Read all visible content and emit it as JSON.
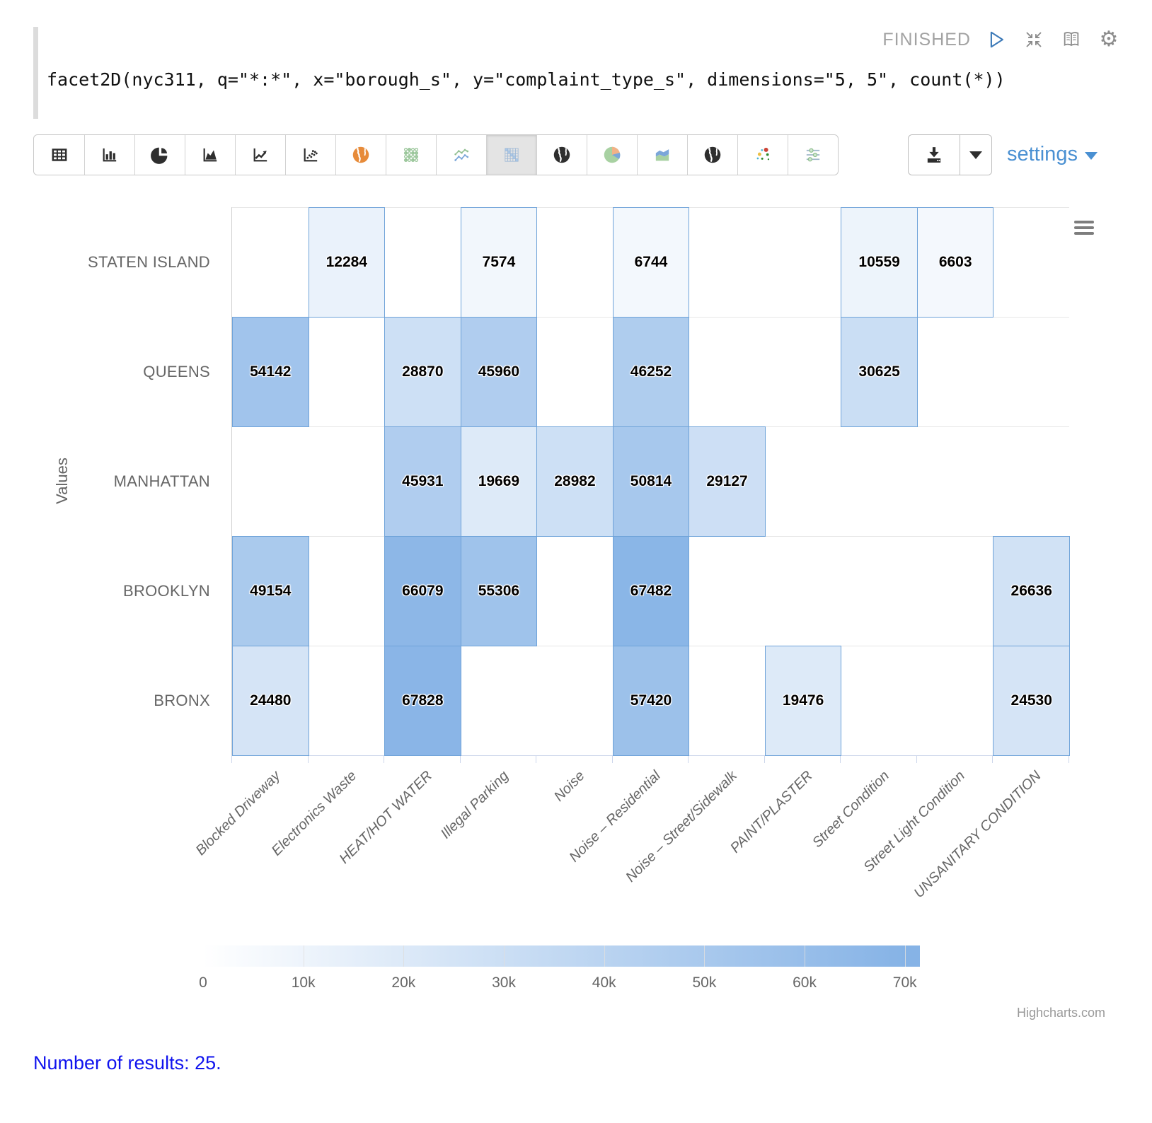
{
  "status": {
    "label": "FINISHED"
  },
  "editor": {
    "code": "facet2D(nyc311, q=\"*:*\", x=\"borough_s\", y=\"complaint_type_s\", dimensions=\"5, 5\", count(*))"
  },
  "toolbar": {
    "chart_type_icons": [
      "table-icon",
      "bar-chart-icon",
      "pie-chart-icon",
      "area-chart-icon",
      "line-chart-icon",
      "scatter-plot-icon",
      "map-globe-orange-icon",
      "dot-matrix-icon",
      "multi-line-chart-icon",
      "heatmap-icon",
      "globe-icon",
      "color-pie-icon",
      "stacked-area-icon",
      "globe2-icon",
      "bubble-chart-icon",
      "parallel-sliders-icon"
    ],
    "selected_icon": "heatmap-icon",
    "settings_label": "settings"
  },
  "colors": {
    "accent_blue": "#4a90d2",
    "link_blue": "#1013ee",
    "status_gray": "#a2a2a2",
    "cell_border": "#6fa3d9",
    "axis_line": "#ccd6eb",
    "gridline": "#e6e6e6"
  },
  "chart_data": {
    "type": "heatmap",
    "title": "",
    "ylabel": "Values",
    "xlabel": "",
    "x_categories": [
      "Blocked Driveway",
      "Electronics Waste",
      "HEAT/HOT WATER",
      "Illegal Parking",
      "Noise",
      "Noise – Residential",
      "Noise – Street/Sidewalk",
      "PAINT/PLASTER",
      "Street Condition",
      "Street Light Condition",
      "UNSANITARY CONDITION"
    ],
    "y_categories_top_to_bottom": [
      "STATEN ISLAND",
      "QUEENS",
      "MANHATTAN",
      "BROOKLYN",
      "BRONX"
    ],
    "rows": [
      {
        "label": "STATEN ISLAND",
        "values": [
          null,
          12284,
          null,
          7574,
          null,
          6744,
          null,
          null,
          10559,
          6603,
          null
        ]
      },
      {
        "label": "QUEENS",
        "values": [
          54142,
          null,
          28870,
          45960,
          null,
          46252,
          null,
          null,
          30625,
          null,
          null
        ]
      },
      {
        "label": "MANHATTAN",
        "values": [
          null,
          null,
          45931,
          19669,
          28982,
          50814,
          29127,
          null,
          null,
          null,
          null
        ]
      },
      {
        "label": "BROOKLYN",
        "values": [
          49154,
          null,
          66079,
          55306,
          null,
          67482,
          null,
          null,
          null,
          null,
          26636
        ]
      },
      {
        "label": "BRONX",
        "values": [
          24480,
          null,
          67828,
          null,
          null,
          57420,
          null,
          19476,
          null,
          null,
          24530
        ]
      }
    ],
    "color_axis": {
      "min": 0,
      "max": 70000,
      "min_color": "#ffffff",
      "max_color": "#86b3e6",
      "tick_labels": [
        "0",
        "10k",
        "20k",
        "30k",
        "40k",
        "50k",
        "60k",
        "70k"
      ],
      "tick_values": [
        0,
        10000,
        20000,
        30000,
        40000,
        50000,
        60000,
        70000
      ],
      "axis_max_value": 71500
    },
    "legend_position": "bottom",
    "grid": "horizontal-only"
  },
  "credits": {
    "label": "Highcharts.com"
  },
  "footer": {
    "result_note": "Number of results: 25."
  }
}
